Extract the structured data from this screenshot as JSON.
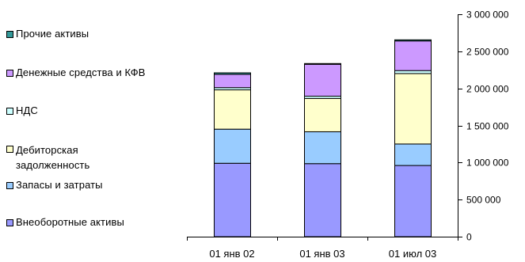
{
  "chart_data": {
    "type": "bar",
    "stacked": true,
    "categories": [
      "01 янв 02",
      "01 янв 03",
      "01 июл 03"
    ],
    "series": [
      {
        "name": "Внеоборотные активы",
        "color": "#9999ff",
        "values": [
          990000,
          985000,
          960000
        ]
      },
      {
        "name": "Запасы и затраты",
        "color": "#99ccff",
        "values": [
          460000,
          430000,
          290000
        ]
      },
      {
        "name": "Дебиторская задолженность",
        "color": "#ffffcc",
        "values": [
          530000,
          450000,
          950000
        ]
      },
      {
        "name": "НДС",
        "color": "#ccffff",
        "values": [
          30000,
          30000,
          40000
        ]
      },
      {
        "name": "Денежные средства и КФВ",
        "color": "#cc99ff",
        "values": [
          180000,
          430000,
          400000
        ]
      },
      {
        "name": "Прочие активы",
        "color": "#339999",
        "values": [
          20000,
          10000,
          15000
        ]
      }
    ],
    "ylim": [
      0,
      3000000
    ],
    "yticks": [
      "0",
      "500 000",
      "1 000 000",
      "1 500 000",
      "2 000 000",
      "2 500 000",
      "3 000 000"
    ],
    "y_axis_side": "right",
    "grid": false,
    "legend_position": "left"
  },
  "legend": [
    {
      "label": "Прочие активы",
      "color": "#339999"
    },
    {
      "label": "Денежные средства и КФВ",
      "color": "#cc99ff"
    },
    {
      "label": "НДС",
      "color": "#ccffff"
    },
    {
      "label": "Дебиторская\nзадолженность",
      "color": "#ffffcc"
    },
    {
      "label": "Запасы и затраты",
      "color": "#99ccff"
    },
    {
      "label": "Внеоборотные активы",
      "color": "#9999ff"
    }
  ]
}
